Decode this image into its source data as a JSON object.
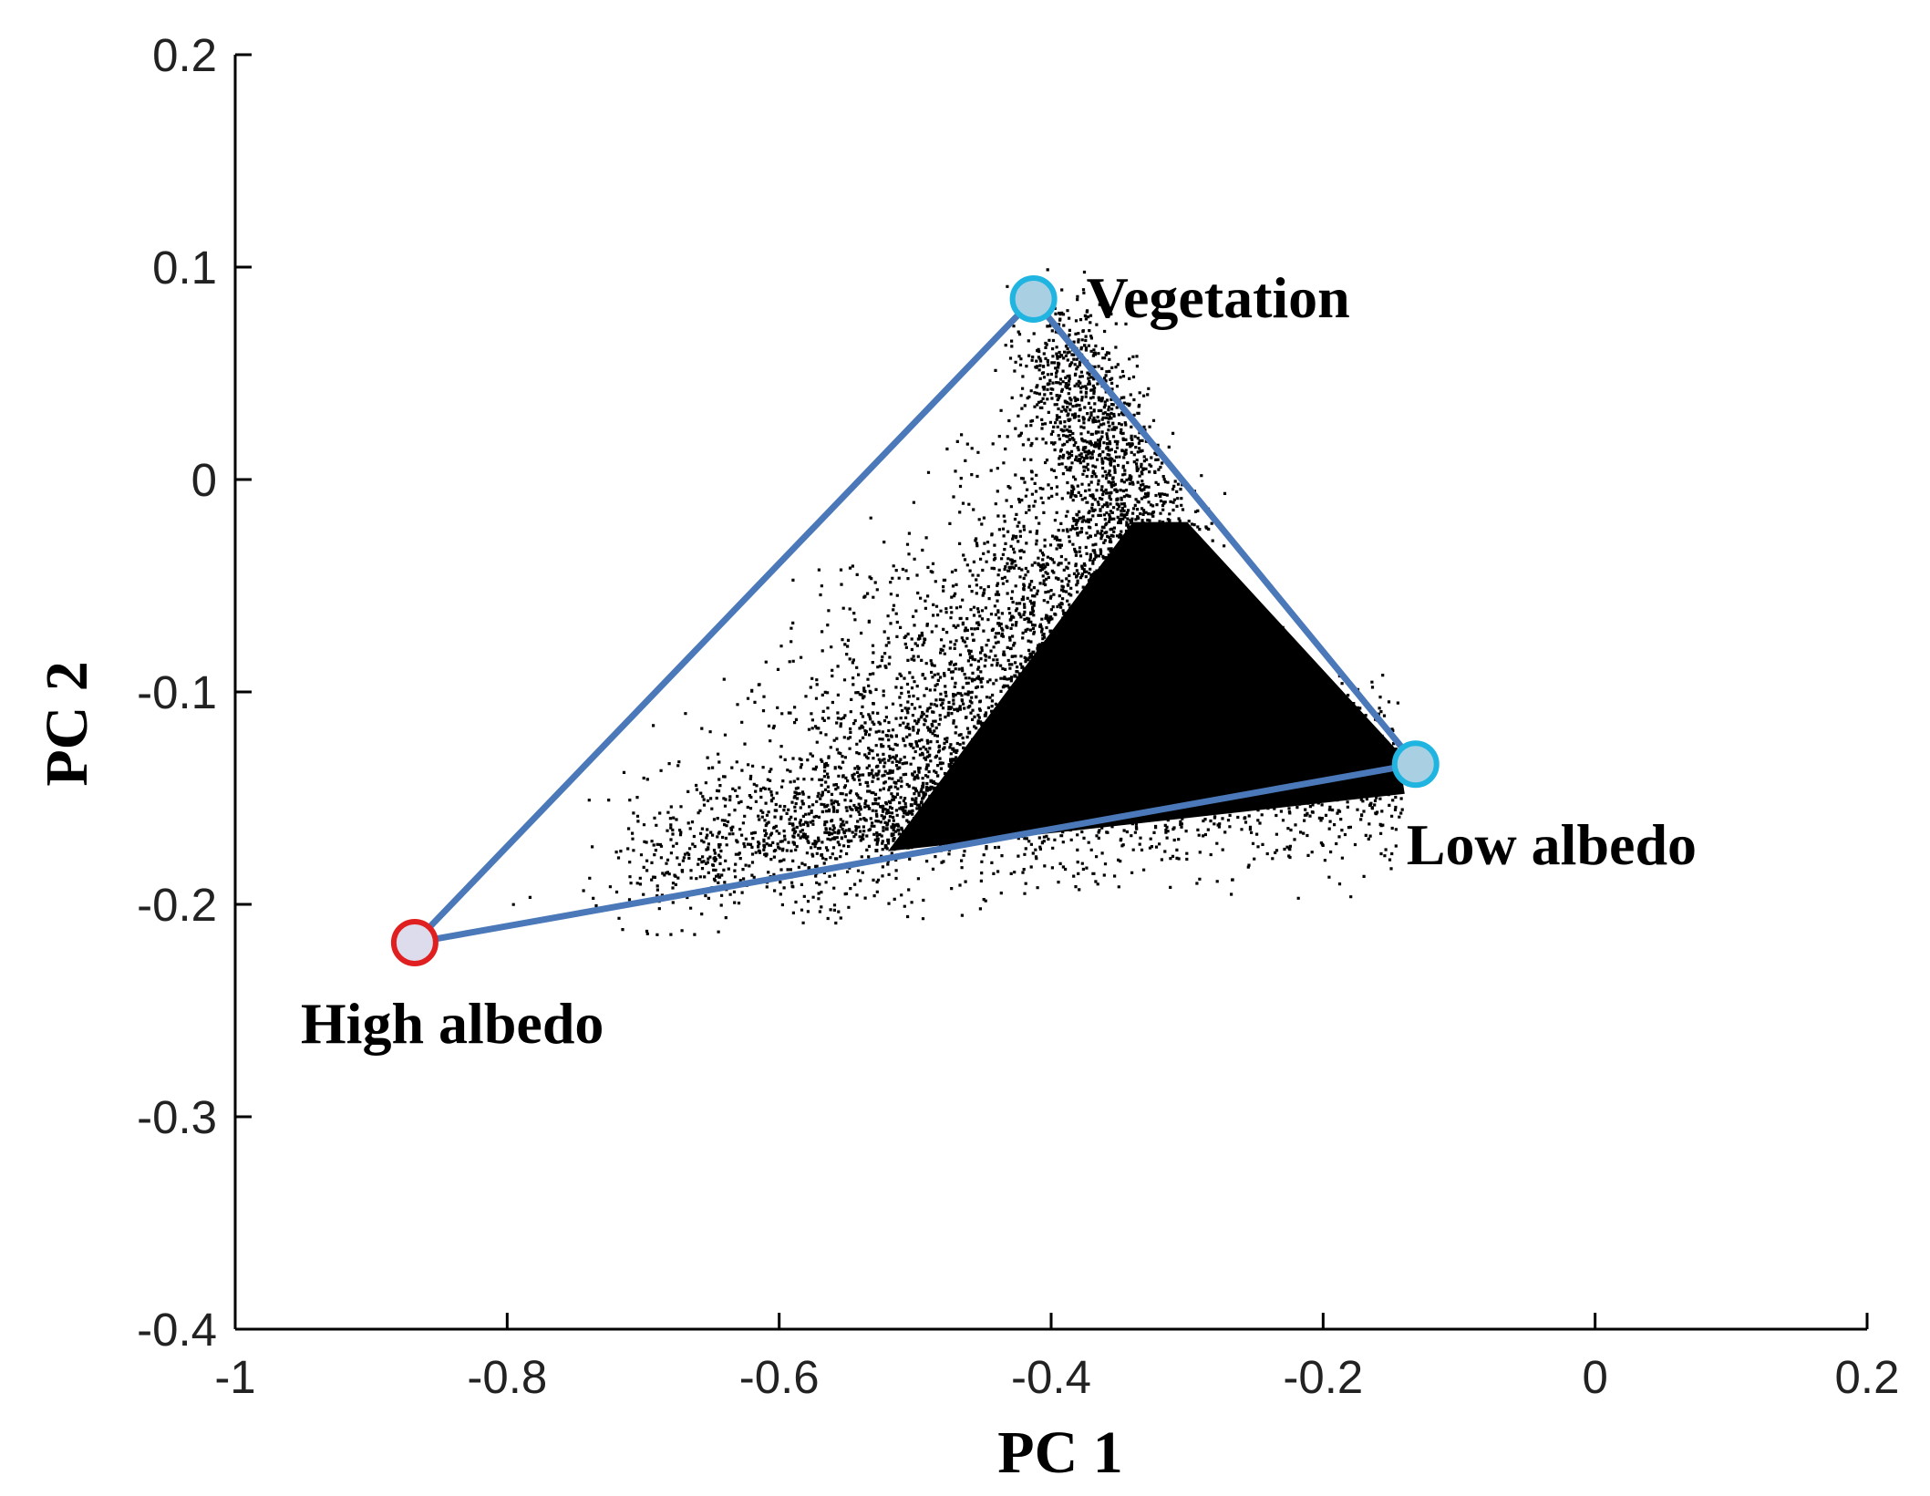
{
  "chart_data": {
    "type": "scatter",
    "title": "",
    "xlabel": "PC 1",
    "ylabel": "PC 2",
    "xlim": [
      -1,
      0.2
    ],
    "ylim": [
      -0.4,
      0.2
    ],
    "xticks": [
      -1,
      -0.8,
      -0.6,
      -0.4,
      -0.2,
      0,
      0.2
    ],
    "xtick_labels": [
      "-1",
      "-0.8",
      "-0.6",
      "-0.4",
      "-0.2",
      "0",
      "0.2"
    ],
    "yticks": [
      -0.4,
      -0.3,
      -0.2,
      -0.1,
      0,
      0.1,
      0.2
    ],
    "ytick_labels": [
      "-0.4",
      "-0.3",
      "-0.2",
      "-0.1",
      "0",
      "0.1",
      "0.2"
    ],
    "grid": false,
    "point_color": "#000000",
    "line_color": "#4a78b8",
    "endmembers": [
      {
        "name": "Vegetation",
        "x": -0.413,
        "y": 0.085,
        "stroke": "#1fb5e0",
        "fill": "#a9cfe3"
      },
      {
        "name": "Low albedo",
        "x": -0.132,
        "y": -0.134,
        "stroke": "#1fb5e0",
        "fill": "#a9cfe3"
      },
      {
        "name": "High albedo",
        "x": -0.868,
        "y": -0.218,
        "stroke": "#e02020",
        "fill": "#dcdcec"
      }
    ],
    "point_cloud": {
      "description": "dense pixel scatter inside the endmember triangle",
      "dense_core_polygon": [
        [
          -0.52,
          -0.175
        ],
        [
          -0.34,
          -0.02
        ],
        [
          -0.3,
          -0.02
        ],
        [
          -0.145,
          -0.128
        ],
        [
          -0.14,
          -0.148
        ],
        [
          -0.52,
          -0.175
        ]
      ],
      "approx_count": 9000
    }
  }
}
